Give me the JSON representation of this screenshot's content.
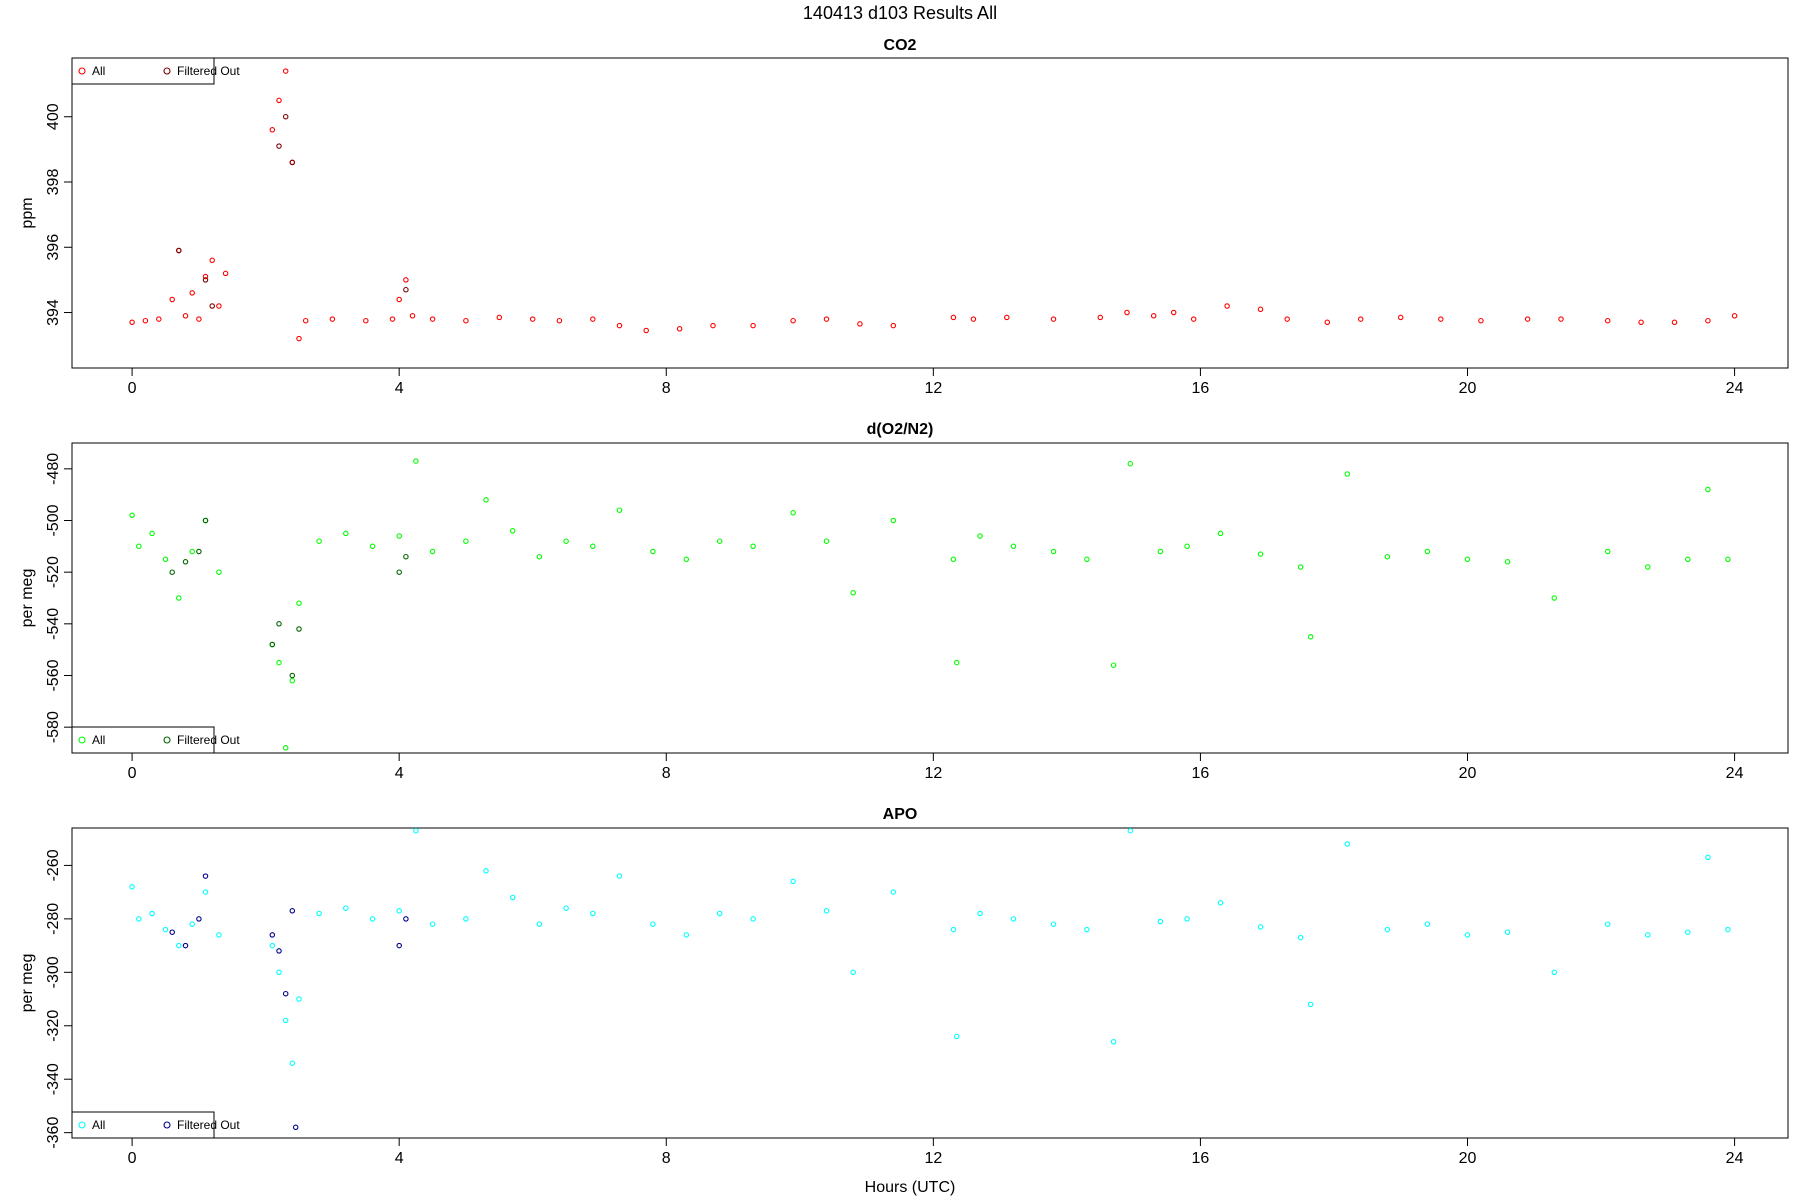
{
  "figure_title": "140413   d103   Results All",
  "xlabel": "Hours (UTC)",
  "colors": {
    "co2_all": "#ff0000",
    "co2_filtered": "#7a0000",
    "o2_all": "#00ff00",
    "o2_filtered": "#006400",
    "apo_all": "#00ffff",
    "apo_filtered": "#00008b"
  },
  "chart_data": [
    {
      "type": "scatter",
      "title": "CO2",
      "ylabel": "ppm",
      "xlim": [
        -0.9,
        24.8
      ],
      "ylim": [
        392.3,
        401.8
      ],
      "xticks": [
        0,
        4,
        8,
        12,
        16,
        20,
        24
      ],
      "yticks": [
        394,
        396,
        398,
        400
      ],
      "legend": {
        "position": "top-left",
        "entries": [
          "All",
          "Filtered Out"
        ]
      },
      "series": [
        {
          "name": "All",
          "color": "#ff0000",
          "x": [
            0.0,
            0.2,
            0.4,
            0.6,
            0.7,
            0.8,
            0.9,
            1.0,
            1.1,
            1.2,
            1.3,
            1.4,
            2.1,
            2.2,
            2.3,
            2.4,
            2.5,
            2.6,
            3.0,
            3.5,
            3.9,
            4.0,
            4.1,
            4.2,
            4.5,
            5.0,
            5.5,
            6.0,
            6.4,
            6.9,
            7.3,
            7.7,
            8.2,
            8.7,
            9.3,
            9.9,
            10.4,
            10.9,
            11.4,
            12.3,
            12.6,
            13.1,
            13.8,
            14.5,
            14.9,
            15.3,
            15.6,
            15.9,
            16.4,
            16.9,
            17.3,
            17.9,
            18.4,
            19.0,
            19.6,
            20.2,
            20.9,
            21.4,
            22.1,
            22.6,
            23.1,
            23.6,
            24.0
          ],
          "y": [
            393.7,
            393.75,
            393.8,
            394.4,
            395.9,
            393.9,
            394.6,
            393.8,
            395.1,
            395.6,
            394.2,
            395.2,
            399.6,
            400.5,
            401.4,
            398.6,
            393.2,
            393.75,
            393.8,
            393.75,
            393.8,
            394.4,
            395.0,
            393.9,
            393.8,
            393.75,
            393.85,
            393.8,
            393.75,
            393.8,
            393.6,
            393.45,
            393.5,
            393.6,
            393.6,
            393.75,
            393.8,
            393.65,
            393.6,
            393.85,
            393.8,
            393.85,
            393.8,
            393.85,
            394.0,
            393.9,
            394.0,
            393.8,
            394.2,
            394.1,
            393.8,
            393.7,
            393.8,
            393.85,
            393.8,
            393.75,
            393.8,
            393.8,
            393.75,
            393.7,
            393.7,
            393.75,
            393.9
          ]
        },
        {
          "name": "Filtered Out",
          "color": "#7a0000",
          "x": [
            0.7,
            1.1,
            1.2,
            2.2,
            2.3,
            2.4,
            4.1
          ],
          "y": [
            395.9,
            395.0,
            394.2,
            399.1,
            400.0,
            398.6,
            394.7
          ]
        }
      ]
    },
    {
      "type": "scatter",
      "title": "d(O2/N2)",
      "ylabel": "per meg",
      "xlim": [
        -0.9,
        24.8
      ],
      "ylim": [
        -590,
        -470
      ],
      "xticks": [
        0,
        4,
        8,
        12,
        16,
        20,
        24
      ],
      "yticks": [
        -580,
        -560,
        -540,
        -520,
        -500,
        -480
      ],
      "legend": {
        "position": "bottom-left",
        "entries": [
          "All",
          "Filtered Out"
        ]
      },
      "series": [
        {
          "name": "All",
          "color": "#00ff00",
          "x": [
            0.0,
            0.1,
            0.3,
            0.5,
            0.7,
            0.9,
            1.1,
            1.3,
            2.1,
            2.2,
            2.3,
            2.4,
            2.5,
            2.8,
            3.2,
            3.6,
            4.0,
            4.25,
            4.5,
            5.0,
            5.3,
            5.7,
            6.1,
            6.5,
            6.9,
            7.3,
            7.8,
            8.3,
            8.8,
            9.3,
            9.9,
            10.4,
            10.8,
            11.4,
            12.3,
            12.35,
            12.7,
            13.2,
            13.8,
            14.3,
            14.7,
            14.95,
            15.4,
            15.8,
            16.3,
            16.9,
            17.5,
            17.65,
            18.2,
            18.8,
            19.4,
            20.0,
            20.6,
            21.3,
            22.1,
            22.7,
            23.3,
            23.6,
            23.9
          ],
          "y": [
            -498,
            -510,
            -505,
            -515,
            -530,
            -512,
            -500,
            -520,
            -548,
            -555,
            -588,
            -562,
            -532,
            -508,
            -505,
            -510,
            -506,
            -477,
            -512,
            -508,
            -492,
            -504,
            -514,
            -508,
            -510,
            -496,
            -512,
            -515,
            -508,
            -510,
            -497,
            -508,
            -528,
            -500,
            -515,
            -555,
            -506,
            -510,
            -512,
            -515,
            -556,
            -478,
            -512,
            -510,
            -505,
            -513,
            -518,
            -545,
            -482,
            -514,
            -512,
            -515,
            -516,
            -530,
            -512,
            -518,
            -515,
            -488,
            -515
          ]
        },
        {
          "name": "Filtered Out",
          "color": "#006400",
          "x": [
            0.6,
            0.8,
            1.0,
            1.1,
            2.1,
            2.2,
            2.4,
            2.5,
            4.0,
            4.1
          ],
          "y": [
            -520,
            -516,
            -512,
            -500,
            -548,
            -540,
            -560,
            -542,
            -520,
            -514
          ]
        }
      ]
    },
    {
      "type": "scatter",
      "title": "APO",
      "ylabel": "per meg",
      "xlim": [
        -0.9,
        24.8
      ],
      "ylim": [
        -362,
        -246
      ],
      "xticks": [
        0,
        4,
        8,
        12,
        16,
        20,
        24
      ],
      "yticks": [
        -360,
        -340,
        -320,
        -300,
        -280,
        -260
      ],
      "legend": {
        "position": "bottom-left",
        "entries": [
          "All",
          "Filtered Out"
        ]
      },
      "series": [
        {
          "name": "All",
          "color": "#00ffff",
          "x": [
            0.0,
            0.1,
            0.3,
            0.5,
            0.7,
            0.9,
            1.1,
            1.3,
            2.1,
            2.2,
            2.3,
            2.4,
            2.5,
            2.8,
            3.2,
            3.6,
            4.0,
            4.25,
            4.5,
            5.0,
            5.3,
            5.7,
            6.1,
            6.5,
            6.9,
            7.3,
            7.8,
            8.3,
            8.8,
            9.3,
            9.9,
            10.4,
            10.8,
            11.4,
            12.3,
            12.35,
            12.7,
            13.2,
            13.8,
            14.3,
            14.7,
            14.95,
            15.4,
            15.8,
            16.3,
            16.9,
            17.5,
            17.65,
            18.2,
            18.8,
            19.4,
            20.0,
            20.6,
            21.3,
            22.1,
            22.7,
            23.3,
            23.6,
            23.9
          ],
          "y": [
            -268,
            -280,
            -278,
            -284,
            -290,
            -282,
            -270,
            -286,
            -290,
            -300,
            -318,
            -334,
            -310,
            -278,
            -276,
            -280,
            -277,
            -247,
            -282,
            -280,
            -262,
            -272,
            -282,
            -276,
            -278,
            -264,
            -282,
            -286,
            -278,
            -280,
            -266,
            -277,
            -300,
            -270,
            -284,
            -324,
            -278,
            -280,
            -282,
            -284,
            -326,
            -247,
            -281,
            -280,
            -274,
            -283,
            -287,
            -312,
            -252,
            -284,
            -282,
            -286,
            -285,
            -300,
            -282,
            -286,
            -285,
            -257,
            -284
          ]
        },
        {
          "name": "Filtered Out",
          "color": "#00008b",
          "x": [
            0.6,
            0.8,
            1.0,
            1.1,
            2.1,
            2.2,
            2.3,
            2.4,
            2.45,
            4.0,
            4.1
          ],
          "y": [
            -285,
            -290,
            -280,
            -264,
            -286,
            -292,
            -308,
            -277,
            -358,
            -290,
            -280
          ]
        }
      ]
    }
  ]
}
